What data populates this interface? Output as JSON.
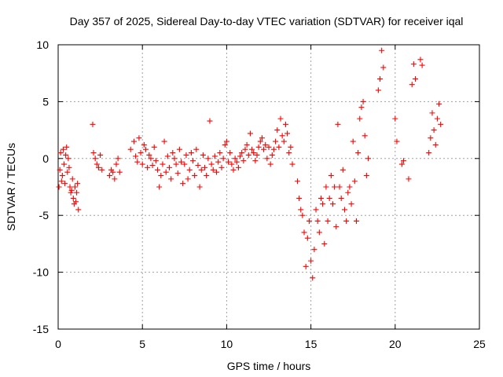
{
  "chart_data": {
    "type": "scatter",
    "title": "Day 357 of 2025, Sidereal Day-to-day VTEC variation (SDTVAR) for receiver iqal",
    "xlabel": "GPS time / hours",
    "ylabel": "SDTVAR / TECUs",
    "xlim": [
      0,
      25
    ],
    "ylim": [
      -15,
      10
    ],
    "xticks": [
      0,
      5,
      10,
      15,
      20,
      25
    ],
    "yticks": [
      -15,
      -10,
      -5,
      0,
      5,
      10
    ],
    "xtick_labels": [
      "0",
      "5",
      "10",
      "15",
      "20",
      "25"
    ],
    "ytick_labels": [
      "-15",
      "-10",
      "-5",
      "0",
      "5",
      "10"
    ],
    "grid": true,
    "marker": "plus",
    "series": [
      {
        "name": "SDTVAR",
        "color": "#ff0000",
        "x": [
          0.05,
          0.1,
          0.15,
          0.2,
          0.25,
          0.3,
          0.35,
          0.4,
          0.45,
          0.5,
          0.55,
          0.6,
          0.65,
          0.7,
          0.75,
          0.8,
          0.85,
          0.9,
          0.95,
          1.0,
          1.05,
          1.1,
          1.15,
          1.2,
          2.05,
          2.1,
          2.2,
          2.3,
          2.4,
          2.5,
          2.6,
          3.05,
          3.15,
          3.25,
          3.35,
          3.45,
          3.55,
          3.65,
          4.3,
          4.5,
          4.6,
          4.7,
          4.8,
          4.9,
          5.0,
          5.1,
          5.2,
          5.3,
          5.4,
          5.5,
          5.6,
          5.7,
          5.8,
          5.9,
          6.0,
          6.1,
          6.2,
          6.3,
          6.4,
          6.5,
          6.6,
          6.7,
          6.8,
          6.9,
          7.0,
          7.1,
          7.2,
          7.3,
          7.4,
          7.5,
          7.6,
          7.7,
          7.8,
          7.9,
          8.0,
          8.1,
          8.2,
          8.3,
          8.4,
          8.5,
          8.6,
          8.7,
          8.8,
          8.9,
          9.0,
          9.1,
          9.2,
          9.3,
          9.4,
          9.5,
          9.6,
          9.7,
          9.8,
          9.9,
          10.0,
          10.1,
          10.2,
          10.3,
          10.4,
          10.5,
          10.6,
          10.7,
          10.8,
          10.9,
          11.0,
          11.1,
          11.2,
          11.3,
          11.4,
          11.5,
          11.6,
          11.7,
          11.8,
          11.9,
          12.0,
          12.1,
          12.2,
          12.3,
          12.4,
          12.5,
          12.6,
          12.7,
          12.8,
          12.9,
          13.0,
          13.1,
          13.2,
          13.3,
          13.4,
          13.5,
          13.6,
          13.7,
          13.8,
          13.9,
          14.2,
          14.3,
          14.4,
          14.5,
          14.6,
          14.7,
          14.8,
          14.9,
          15.0,
          15.1,
          15.2,
          15.3,
          15.4,
          15.5,
          15.6,
          15.7,
          15.8,
          15.9,
          16.0,
          16.1,
          16.2,
          16.3,
          16.4,
          16.5,
          16.6,
          16.7,
          16.8,
          16.9,
          17.0,
          17.1,
          17.2,
          17.3,
          17.4,
          17.5,
          17.6,
          17.7,
          17.8,
          17.9,
          18.0,
          18.1,
          18.2,
          18.3,
          18.4,
          19.0,
          19.1,
          19.2,
          19.3,
          20.0,
          20.1,
          20.4,
          20.5,
          20.8,
          21.0,
          21.1,
          21.2,
          21.5,
          21.6,
          22.0,
          22.1,
          22.2,
          22.3,
          22.4,
          22.5,
          22.6,
          22.7
        ],
        "y": [
          -2.5,
          -1.0,
          0.5,
          -2.0,
          -1.5,
          0.8,
          -0.5,
          -2.2,
          0.3,
          1.0,
          -1.2,
          0.0,
          -0.8,
          -2.5,
          -3.0,
          -2.8,
          -1.8,
          -3.5,
          -4.0,
          -2.5,
          -3.8,
          -3.0,
          -2.2,
          -4.5,
          3.0,
          0.5,
          0.0,
          -0.5,
          -0.8,
          0.3,
          -1.0,
          -1.5,
          -1.0,
          -1.2,
          -1.8,
          -0.5,
          0.0,
          -1.2,
          0.8,
          1.5,
          0.2,
          -0.3,
          1.8,
          0.5,
          -0.5,
          1.2,
          0.8,
          -0.8,
          0.3,
          0.0,
          -0.6,
          1.0,
          -0.2,
          -1.0,
          -2.5,
          -1.5,
          -0.5,
          1.5,
          -1.2,
          0.2,
          -0.8,
          -1.8,
          0.5,
          0.0,
          -0.5,
          -1.3,
          0.8,
          -0.3,
          -2.2,
          -0.5,
          0.3,
          -1.8,
          -1.0,
          0.5,
          -0.2,
          -1.5,
          0.8,
          -0.6,
          -2.5,
          -1.0,
          0.3,
          -0.8,
          -1.5,
          0.0,
          3.3,
          -0.5,
          -1.0,
          0.2,
          -1.2,
          -0.3,
          0.5,
          -0.8,
          0.0,
          1.2,
          1.5,
          -0.3,
          0.5,
          -0.5,
          -1.0,
          0.0,
          -0.3,
          -0.8,
          0.2,
          0.5,
          -0.2,
          0.8,
          1.2,
          0.3,
          2.2,
          0.8,
          0.5,
          -0.2,
          0.3,
          1.0,
          1.5,
          1.8,
          0.8,
          1.2,
          0.0,
          1.0,
          -0.5,
          0.3,
          0.8,
          1.5,
          2.5,
          1.0,
          3.5,
          2.0,
          1.5,
          3.0,
          2.2,
          0.5,
          1.0,
          -0.5,
          -2.0,
          -3.5,
          -4.5,
          -5.0,
          -6.5,
          -9.5,
          -7.0,
          -5.5,
          -9.0,
          -10.5,
          -8.0,
          -4.5,
          -5.5,
          -6.5,
          -3.5,
          -4.0,
          -7.5,
          -2.5,
          -5.5,
          -3.5,
          -1.5,
          -4.0,
          -2.5,
          -6.0,
          3.0,
          -2.5,
          -3.5,
          -1.0,
          -4.5,
          -5.5,
          -3.0,
          -2.5,
          -4.0,
          1.5,
          -2.0,
          -5.5,
          0.5,
          3.5,
          4.5,
          5.0,
          2.0,
          -1.5,
          0.0,
          6.0,
          7.0,
          9.5,
          8.0,
          3.5,
          1.5,
          -0.5,
          -0.2,
          -1.8,
          6.5,
          8.3,
          7.0,
          8.7,
          8.2,
          0.5,
          1.8,
          4.0,
          2.5,
          1.2,
          3.5,
          4.8,
          3.0
        ]
      }
    ]
  }
}
